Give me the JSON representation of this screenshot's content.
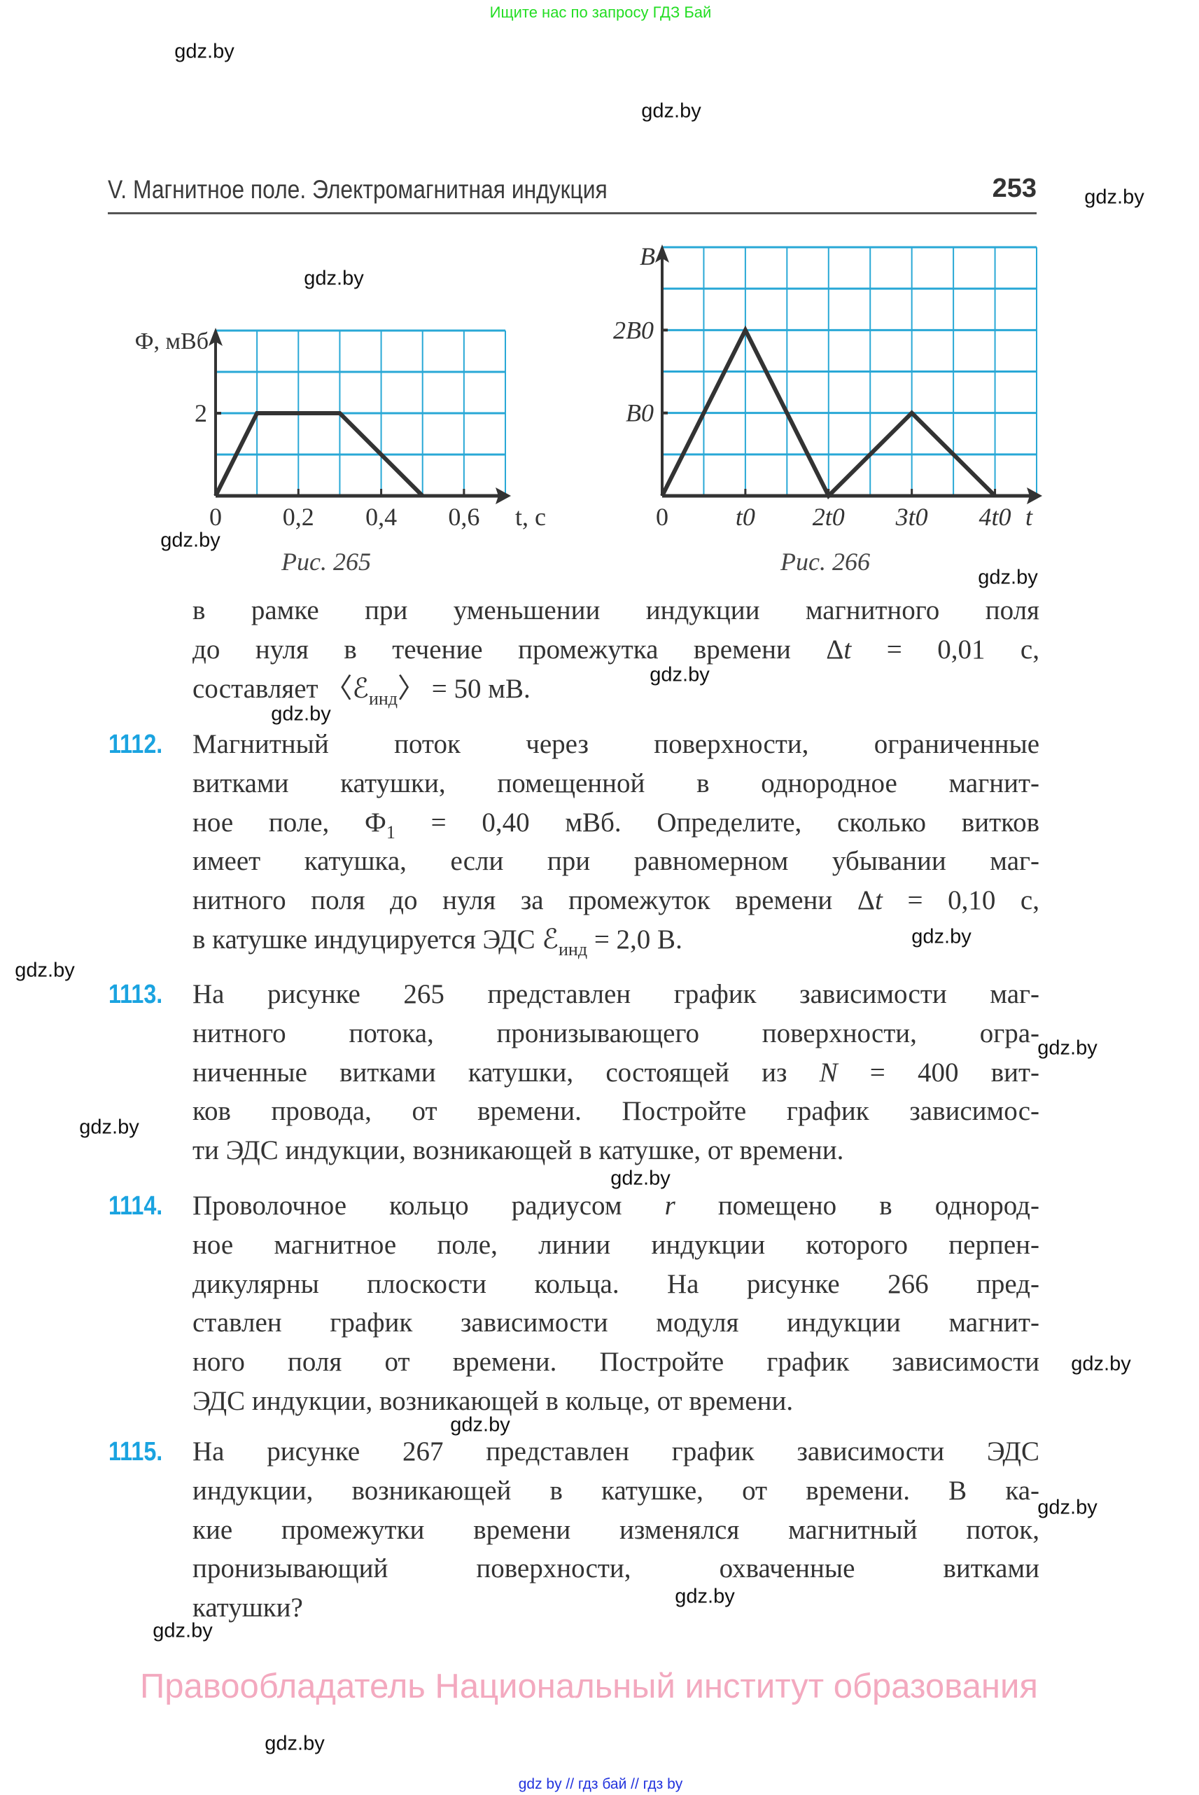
{
  "top_banner": "Ищите нас по запросу ГДЗ Бай",
  "header": {
    "title": "V. Магнитное поле. Электромагнитная индукция",
    "page_number": "253"
  },
  "watermark": "gdz.by",
  "colors": {
    "grid": "#29a8d6",
    "curve": "#333333",
    "problem_number": "#1aa3e0",
    "copyright": "#f3a9bf",
    "footer_link": "#2233dd",
    "top_banner": "#22dd22"
  },
  "figures": [
    {
      "caption": "Рис. 265"
    },
    {
      "caption": "Рис. 266"
    }
  ],
  "chart_data": [
    {
      "type": "line",
      "caption": "Рис. 265",
      "ylabel": "Ф, мВб",
      "xlabel": "t, с",
      "x_tick_labels": [
        "0",
        "0,2",
        "0,4",
        "0,6"
      ],
      "x_ticks": [
        0,
        0.2,
        0.4,
        0.6
      ],
      "y_tick_labels": [
        "2"
      ],
      "y_ticks": [
        2
      ],
      "xlim": [
        0,
        0.7
      ],
      "ylim": [
        0,
        4
      ],
      "grid": true,
      "x": [
        0,
        0.1,
        0.3,
        0.5
      ],
      "y": [
        0,
        2,
        2,
        0
      ]
    },
    {
      "type": "line",
      "caption": "Рис. 266",
      "ylabel": "B",
      "xlabel": "t",
      "x_tick_labels": [
        "0",
        "t0",
        "2t0",
        "3t0",
        "4t0"
      ],
      "x_ticks": [
        0,
        1,
        2,
        3,
        4
      ],
      "y_tick_labels": [
        "B0",
        "2B0"
      ],
      "y_ticks": [
        1,
        2
      ],
      "xlim": [
        0,
        4.5
      ],
      "ylim": [
        0,
        3
      ],
      "x_unit": "t0",
      "y_unit": "B0",
      "grid": true,
      "x": [
        0,
        1,
        2,
        3,
        4
      ],
      "y": [
        0,
        2,
        0,
        1,
        0
      ]
    }
  ],
  "intro": {
    "lines": [
      [
        {
          "t": "в рамке при уменьшении индукции магнитного поля"
        }
      ],
      [
        {
          "t": "до нуля в течение промежутка времени Δ"
        },
        {
          "t": "t",
          "i": true
        },
        {
          "t": " = 0,01 с,"
        }
      ],
      [
        {
          "t": "составляет 〈ℰ"
        },
        {
          "t": "инд",
          "sub": true
        },
        {
          "t": "〉 = 50 мВ."
        }
      ]
    ]
  },
  "problems": [
    {
      "number": "1112.",
      "lines": [
        [
          {
            "t": "Магнитный поток через поверхности, ограниченные"
          }
        ],
        [
          {
            "t": "витками катушки, помещенной в однородное магнит-"
          }
        ],
        [
          {
            "t": "ное поле, Ф"
          },
          {
            "t": "1",
            "sub": true
          },
          {
            "t": " = 0,40 мВб. Определите, сколько витков"
          }
        ],
        [
          {
            "t": "имеет катушка, если при равномерном убывании маг-"
          }
        ],
        [
          {
            "t": "нитного поля до нуля за промежуток времени Δ"
          },
          {
            "t": "t",
            "i": true
          },
          {
            "t": " = 0,10 с,"
          }
        ],
        [
          {
            "t": "в катушке индуцируется ЭДС ℰ"
          },
          {
            "t": "инд",
            "sub": true
          },
          {
            "t": " = 2,0 В."
          }
        ]
      ]
    },
    {
      "number": "1113.",
      "lines": [
        [
          {
            "t": "На рисунке 265 представлен график зависимости маг-"
          }
        ],
        [
          {
            "t": "нитного потока, пронизывающего поверхности, огра-"
          }
        ],
        [
          {
            "t": "ниченные витками катушки, состоящей из "
          },
          {
            "t": "N",
            "i": true
          },
          {
            "t": " = 400 вит-"
          }
        ],
        [
          {
            "t": "ков провода, от времени. Постройте график зависимос-"
          }
        ],
        [
          {
            "t": "ти ЭДС индукции, возникающей в катушке, от времени."
          }
        ]
      ]
    },
    {
      "number": "1114.",
      "lines": [
        [
          {
            "t": "Проволочное кольцо радиусом "
          },
          {
            "t": "r",
            "i": true
          },
          {
            "t": " помещено в однород-"
          }
        ],
        [
          {
            "t": "ное магнитное поле, линии индукции которого перпен-"
          }
        ],
        [
          {
            "t": "дикулярны плоскости кольца. На рисунке 266 пред-"
          }
        ],
        [
          {
            "t": "ставлен график зависимости модуля индукции магнит-"
          }
        ],
        [
          {
            "t": "ного поля от времени. Постройте график зависимости"
          }
        ],
        [
          {
            "t": "ЭДС индукции, возникающей в кольце, от времени."
          }
        ]
      ]
    },
    {
      "number": "1115.",
      "lines": [
        [
          {
            "t": "На рисунке 267 представлен график зависимости ЭДС"
          }
        ],
        [
          {
            "t": "индукции, возникающей в катушке, от времени. В ка-"
          }
        ],
        [
          {
            "t": "кие промежутки времени изменялся магнитный поток,"
          }
        ],
        [
          {
            "t": "пронизывающий поверхности, охваченные витками"
          }
        ],
        [
          {
            "t": "катушки?"
          }
        ]
      ]
    }
  ],
  "copyright": "Правообладатель Национальный институт образования",
  "footer_links": "gdz by  //  гдз бай  //  гдз by"
}
